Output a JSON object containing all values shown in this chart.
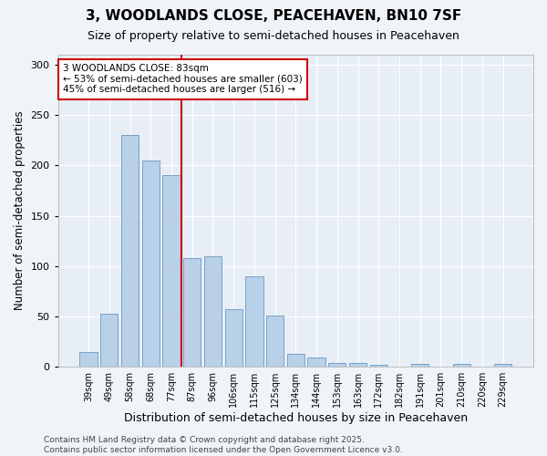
{
  "title": "3, WOODLANDS CLOSE, PEACEHAVEN, BN10 7SF",
  "subtitle": "Size of property relative to semi-detached houses in Peacehaven",
  "xlabel": "Distribution of semi-detached houses by size in Peacehaven",
  "ylabel": "Number of semi-detached properties",
  "categories": [
    "39sqm",
    "49sqm",
    "58sqm",
    "68sqm",
    "77sqm",
    "87sqm",
    "96sqm",
    "106sqm",
    "115sqm",
    "125sqm",
    "134sqm",
    "144sqm",
    "153sqm",
    "163sqm",
    "172sqm",
    "182sqm",
    "191sqm",
    "201sqm",
    "210sqm",
    "220sqm",
    "229sqm"
  ],
  "values": [
    15,
    53,
    230,
    205,
    190,
    108,
    110,
    57,
    90,
    51,
    13,
    9,
    4,
    4,
    2,
    0,
    3,
    0,
    3,
    0,
    3
  ],
  "bar_color": "#b8d0e8",
  "bar_edge_color": "#6898c0",
  "vline_color": "#cc0000",
  "annotation_text": "3 WOODLANDS CLOSE: 83sqm\n← 53% of semi-detached houses are smaller (603)\n45% of semi-detached houses are larger (516) →",
  "ylim": [
    0,
    310
  ],
  "yticks": [
    0,
    50,
    100,
    150,
    200,
    250,
    300
  ],
  "outer_bg": "#f0f4f8",
  "plot_bg_color": "#e8eef6",
  "grid_color": "#ffffff",
  "footer": "Contains HM Land Registry data © Crown copyright and database right 2025.\nContains public sector information licensed under the Open Government Licence v3.0.",
  "title_fontsize": 11,
  "subtitle_fontsize": 9,
  "xlabel_fontsize": 9,
  "ylabel_fontsize": 8.5,
  "annotation_fontsize": 7.5,
  "footer_fontsize": 6.5,
  "tick_fontsize": 7
}
